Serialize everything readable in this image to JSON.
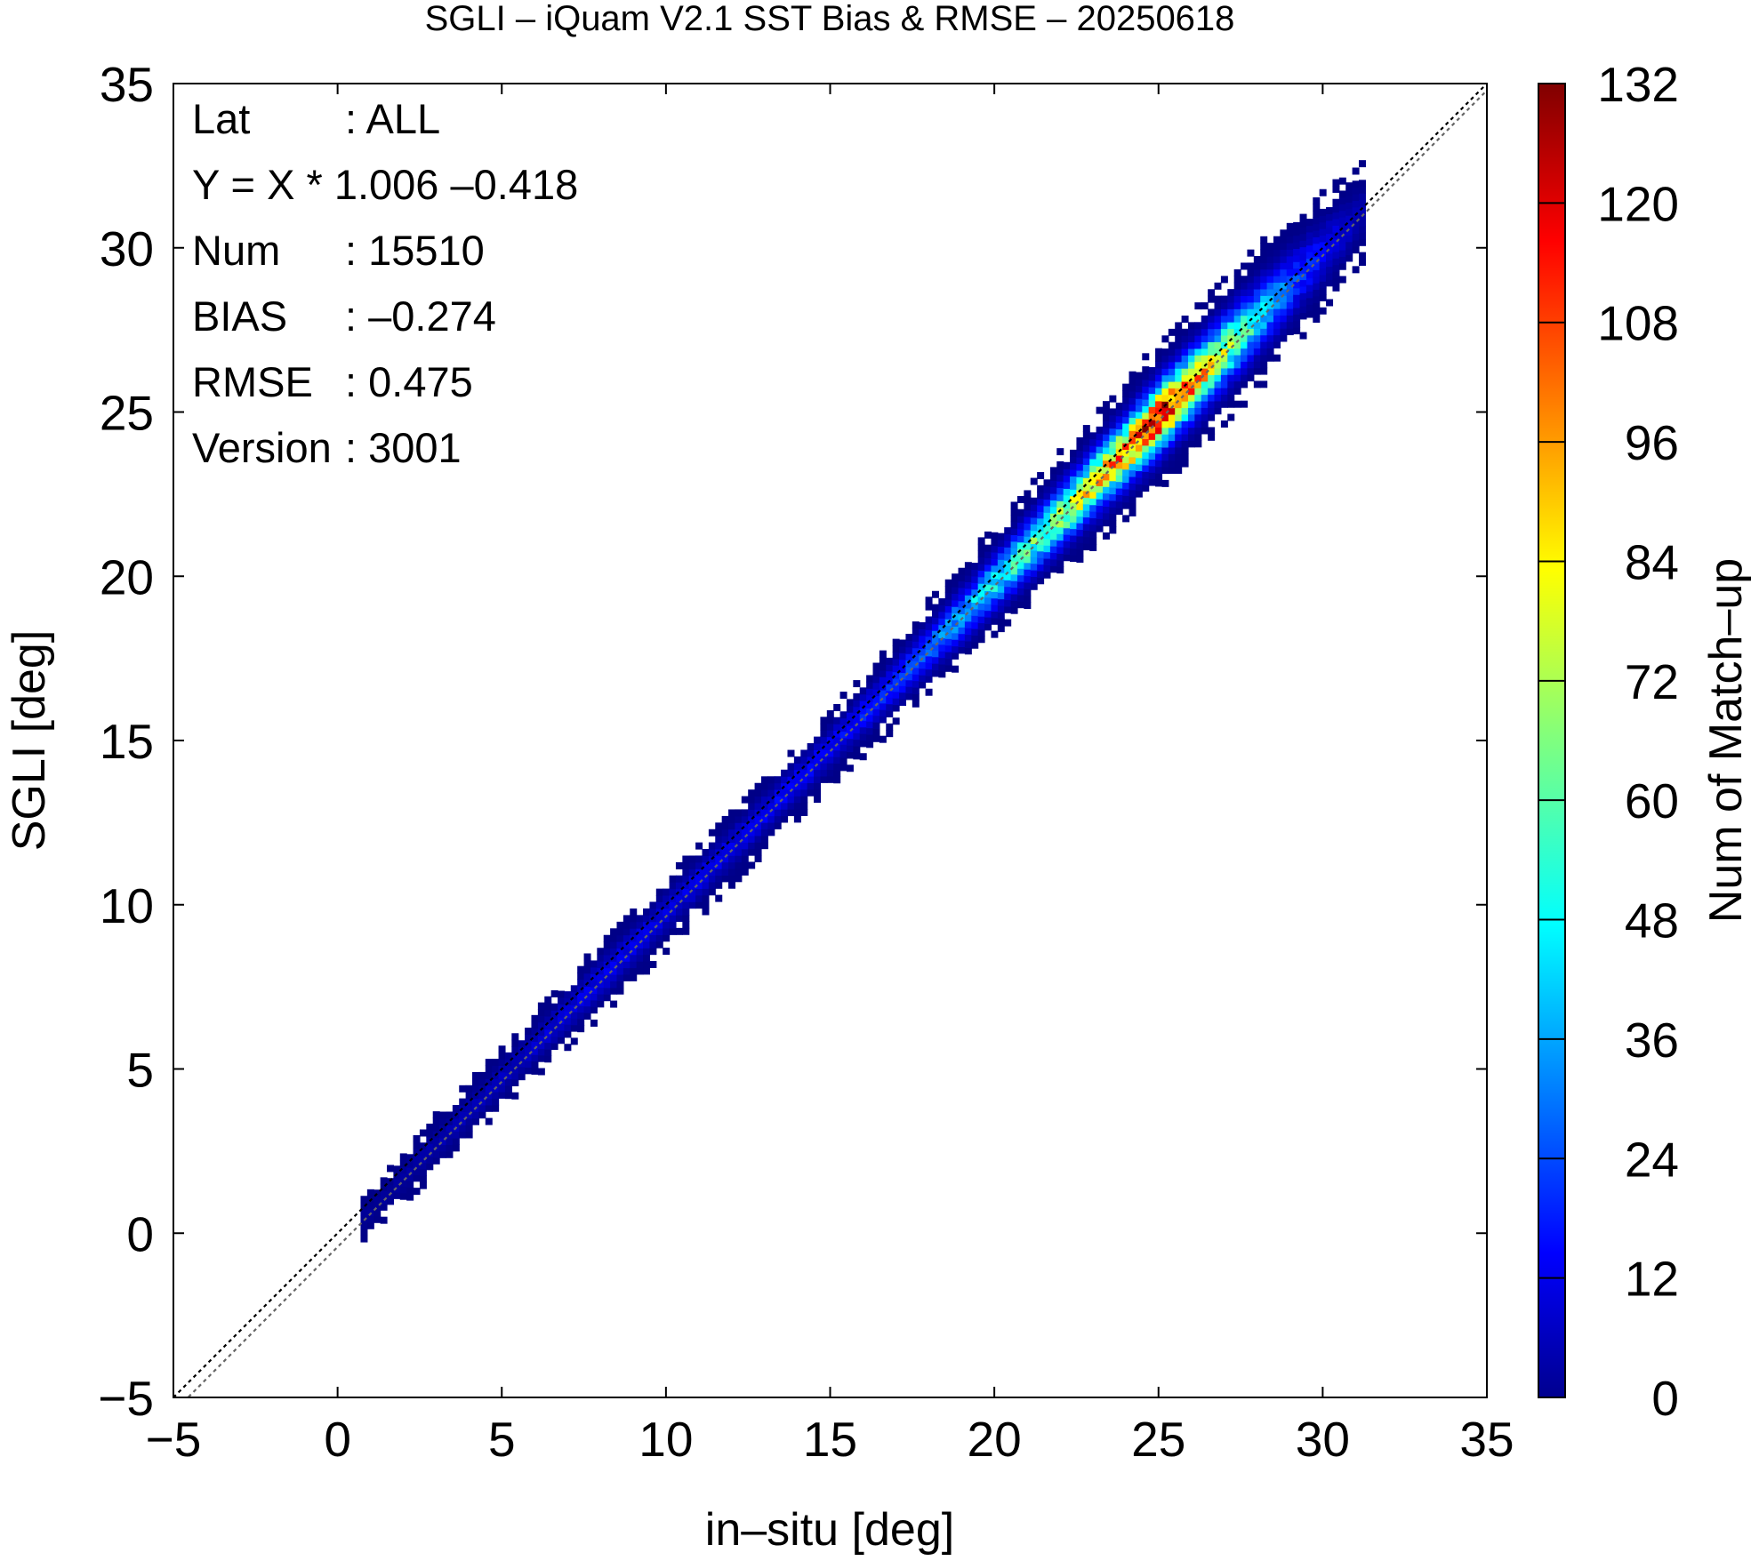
{
  "chart_data": {
    "type": "heatmap",
    "title": "SGLI – iQuam V2.1 SST Bias & RMSE  – 20250618",
    "xlabel": "in–situ [deg]",
    "ylabel": "SGLI [deg]",
    "xlim": [
      -5,
      35
    ],
    "ylim": [
      -5,
      35
    ],
    "x_ticks": [
      "−5",
      "0",
      "5",
      "10",
      "15",
      "20",
      "25",
      "30",
      "35"
    ],
    "y_ticks": [
      "−5",
      "0",
      "5",
      "10",
      "15",
      "20",
      "25",
      "30",
      "35"
    ],
    "x_tick_values": [
      -5,
      0,
      5,
      10,
      15,
      20,
      25,
      30,
      35
    ],
    "y_tick_values": [
      -5,
      0,
      5,
      10,
      15,
      20,
      25,
      30,
      35
    ],
    "grid": false,
    "colorbar": {
      "label": "Num of Match–up",
      "min": 0,
      "max": 132,
      "ticks": [
        "0",
        "12",
        "24",
        "36",
        "48",
        "60",
        "72",
        "84",
        "96",
        "108",
        "120",
        "132"
      ],
      "tick_values": [
        0,
        12,
        24,
        36,
        48,
        60,
        72,
        84,
        96,
        108,
        120,
        132
      ],
      "colormap": "jet"
    },
    "reference_lines": [
      {
        "name": "1:1",
        "slope": 1.0,
        "intercept": 0.0,
        "style": "dotted",
        "color": "#000000"
      },
      {
        "name": "regression",
        "slope": 1.006,
        "intercept": -0.418,
        "style": "dotted",
        "color": "#666666"
      }
    ],
    "density_ridge": {
      "x": [
        1,
        3,
        5,
        8,
        10,
        12,
        15,
        17,
        19,
        21,
        23,
        25,
        27,
        29,
        31
      ],
      "peak_count": [
        3,
        6,
        8,
        14,
        12,
        14,
        16,
        22,
        40,
        60,
        85,
        120,
        70,
        25,
        6
      ],
      "spread_deg": [
        0.25,
        0.3,
        0.3,
        0.35,
        0.35,
        0.35,
        0.35,
        0.4,
        0.45,
        0.5,
        0.55,
        0.6,
        0.6,
        0.6,
        0.5
      ]
    },
    "stats": {
      "lat": {
        "label": "Lat",
        "value": ": ALL"
      },
      "equation": "Y = X * 1.006 –0.418",
      "num": {
        "label": "Num",
        "value": ": 15510"
      },
      "bias": {
        "label": "BIAS",
        "value": ": –0.274"
      },
      "rmse": {
        "label": "RMSE",
        "value": ": 0.475"
      },
      "version": {
        "label": "Version",
        "value": ": 3001"
      }
    }
  }
}
